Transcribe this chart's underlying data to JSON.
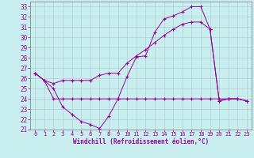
{
  "xlabel": "Windchill (Refroidissement éolien,°C)",
  "bg_color": "#c8eef0",
  "grid_color": "#b0cece",
  "line_color": "#990099",
  "xlim": [
    -0.5,
    23.5
  ],
  "ylim": [
    21,
    33.5
  ],
  "xticks": [
    0,
    1,
    2,
    3,
    4,
    5,
    6,
    7,
    8,
    9,
    10,
    11,
    12,
    13,
    14,
    15,
    16,
    17,
    18,
    19,
    20,
    21,
    22,
    23
  ],
  "yticks": [
    21,
    22,
    23,
    24,
    25,
    26,
    27,
    28,
    29,
    30,
    31,
    32,
    33
  ],
  "line1_x": [
    0,
    1,
    2,
    3,
    4,
    5,
    6,
    7,
    8,
    9,
    10,
    11,
    12,
    13,
    14,
    15,
    16,
    17,
    18,
    19,
    20,
    21,
    22,
    23
  ],
  "line1_y": [
    26.5,
    25.8,
    25.0,
    23.2,
    22.5,
    21.8,
    21.5,
    21.1,
    22.3,
    24.0,
    26.2,
    28.1,
    28.2,
    30.5,
    31.8,
    32.1,
    32.5,
    33.0,
    33.0,
    30.8,
    23.8,
    24.0,
    24.0,
    23.8
  ],
  "line2_x": [
    0,
    1,
    2,
    3,
    4,
    5,
    6,
    7,
    8,
    9,
    10,
    11,
    12,
    13,
    14,
    15,
    16,
    17,
    18,
    19,
    20,
    21,
    22,
    23
  ],
  "line2_y": [
    26.5,
    25.8,
    25.5,
    25.8,
    25.8,
    25.8,
    25.8,
    26.3,
    26.5,
    26.5,
    27.5,
    28.2,
    28.8,
    29.5,
    30.2,
    30.8,
    31.3,
    31.5,
    31.5,
    30.8,
    23.8,
    24.0,
    24.0,
    23.8
  ],
  "line3_x": [
    0,
    1,
    2,
    3,
    4,
    5,
    6,
    7,
    8,
    9,
    10,
    11,
    12,
    13,
    14,
    15,
    16,
    17,
    18,
    19,
    20,
    21,
    22,
    23
  ],
  "line3_y": [
    26.5,
    25.8,
    24.0,
    24.0,
    24.0,
    24.0,
    24.0,
    24.0,
    24.0,
    24.0,
    24.0,
    24.0,
    24.0,
    24.0,
    24.0,
    24.0,
    24.0,
    24.0,
    24.0,
    24.0,
    24.0,
    24.0,
    24.0,
    23.8
  ]
}
